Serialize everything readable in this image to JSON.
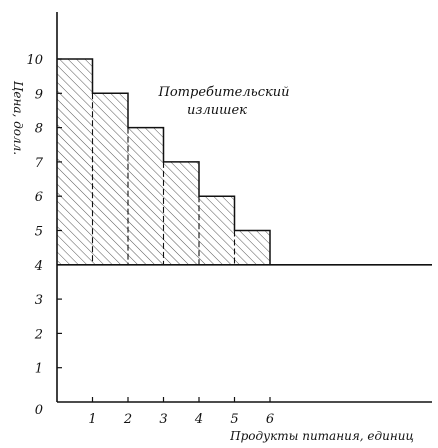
{
  "chart_data": {
    "type": "bar",
    "title": "",
    "xlabel": "Продукты питания, единиц",
    "ylabel": "Цена, долл.",
    "categories": [
      "1",
      "2",
      "3",
      "4",
      "5",
      "6"
    ],
    "values": [
      10,
      9,
      8,
      7,
      6,
      5
    ],
    "market_price": 4,
    "shaded_region": "consumer surplus above price line",
    "annotation": [
      "Потребительский",
      "излишек"
    ],
    "xlim": [
      0,
      11
    ],
    "ylim": [
      0,
      11
    ],
    "x_ticks": [
      "0",
      "1",
      "2",
      "3",
      "4",
      "5",
      "6"
    ],
    "y_ticks": [
      "0",
      "1",
      "2",
      "3",
      "4",
      "5",
      "6",
      "7",
      "8",
      "9",
      "10"
    ],
    "grid": false,
    "colors": {
      "ink": "#111111",
      "background": "#ffffff"
    }
  }
}
